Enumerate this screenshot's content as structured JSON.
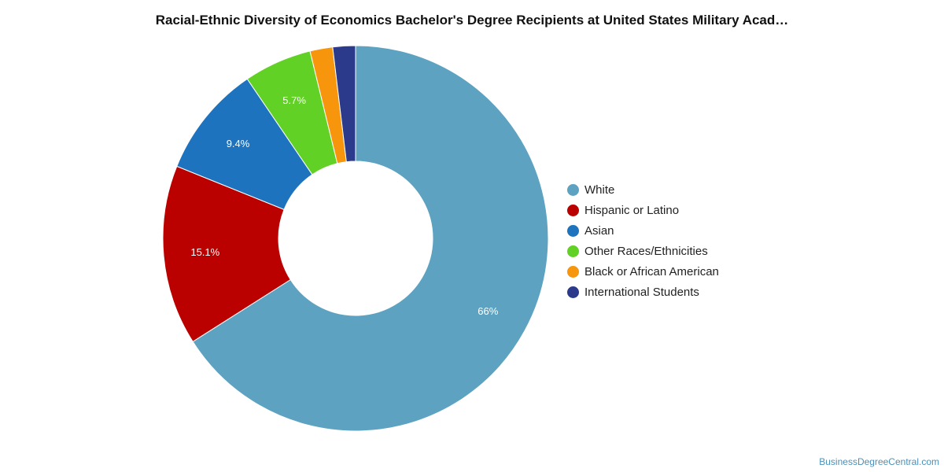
{
  "chart_data": {
    "type": "pie",
    "title": "Racial-Ethnic Diversity of Economics Bachelor's Degree Recipients at United States Military Acad…",
    "donut": true,
    "legend_position": "right",
    "series": [
      {
        "name": "White",
        "value": 66.0,
        "label": "66%",
        "color": "#5da2c0"
      },
      {
        "name": "Hispanic or Latino",
        "value": 15.1,
        "label": "15.1%",
        "color": "#bb0000"
      },
      {
        "name": "Asian",
        "value": 9.4,
        "label": "9.4%",
        "color": "#1e73be"
      },
      {
        "name": "Other Races/Ethnicities",
        "value": 5.7,
        "label": "5.7%",
        "color": "#61d125"
      },
      {
        "name": "Black or African American",
        "value": 1.9,
        "label": "",
        "color": "#f7960d"
      },
      {
        "name": "International Students",
        "value": 1.9,
        "label": "",
        "color": "#2c3a8c"
      }
    ]
  },
  "watermark": "BusinessDegreeCentral.com"
}
